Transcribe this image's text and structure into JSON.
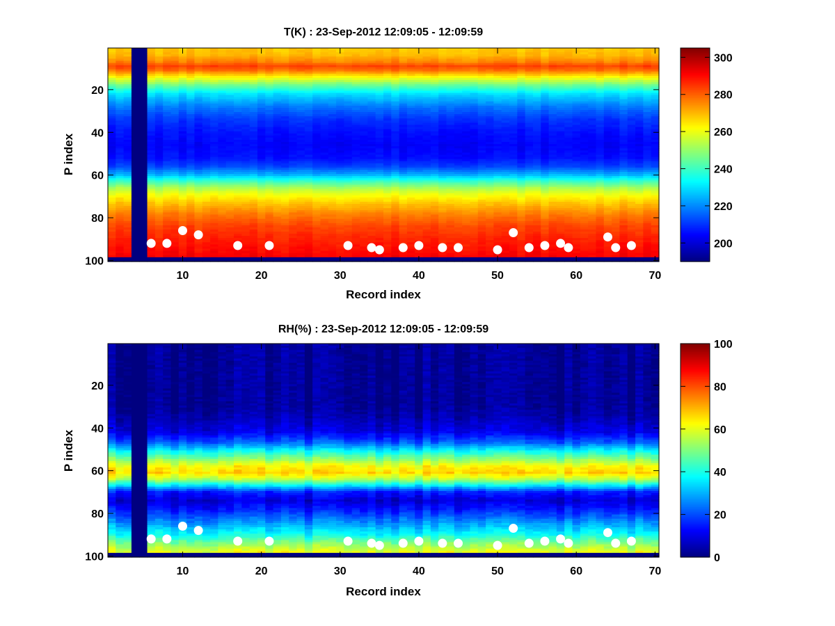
{
  "chart_data": [
    {
      "type": "heatmap",
      "title": "T(K) : 23-Sep-2012 12:09:05 - 12:09:59",
      "xlabel": "Record index",
      "ylabel": "P index",
      "xlim": [
        1,
        70
      ],
      "ylim": [
        1,
        100
      ],
      "y_reversed": true,
      "xticks": [
        10,
        20,
        30,
        40,
        50,
        60,
        70
      ],
      "yticks": [
        20,
        40,
        60,
        80,
        100
      ],
      "colormap": "jet",
      "clim": [
        190,
        305
      ],
      "colorbar_ticks": [
        200,
        220,
        240,
        260,
        280,
        300
      ],
      "profile": [
        {
          "p": 1,
          "value": 268
        },
        {
          "p": 4,
          "value": 270
        },
        {
          "p": 7,
          "value": 276
        },
        {
          "p": 9,
          "value": 283
        },
        {
          "p": 11,
          "value": 278
        },
        {
          "p": 14,
          "value": 263
        },
        {
          "p": 18,
          "value": 245
        },
        {
          "p": 22,
          "value": 230
        },
        {
          "p": 28,
          "value": 218
        },
        {
          "p": 34,
          "value": 210
        },
        {
          "p": 40,
          "value": 206
        },
        {
          "p": 46,
          "value": 204
        },
        {
          "p": 52,
          "value": 206
        },
        {
          "p": 56,
          "value": 212
        },
        {
          "p": 60,
          "value": 225
        },
        {
          "p": 63,
          "value": 240
        },
        {
          "p": 66,
          "value": 252
        },
        {
          "p": 69,
          "value": 260
        },
        {
          "p": 73,
          "value": 268
        },
        {
          "p": 78,
          "value": 276
        },
        {
          "p": 84,
          "value": 283
        },
        {
          "p": 90,
          "value": 287
        },
        {
          "p": 96,
          "value": 290
        },
        {
          "p": 98,
          "value": 291
        }
      ],
      "missing_columns": [
        4,
        5
      ],
      "missing_rows": [
        99,
        100
      ],
      "markers": [
        {
          "x": 6,
          "y": 92
        },
        {
          "x": 8,
          "y": 92
        },
        {
          "x": 10,
          "y": 86
        },
        {
          "x": 12,
          "y": 88
        },
        {
          "x": 17,
          "y": 93
        },
        {
          "x": 21,
          "y": 93
        },
        {
          "x": 31,
          "y": 93
        },
        {
          "x": 34,
          "y": 94
        },
        {
          "x": 35,
          "y": 95
        },
        {
          "x": 38,
          "y": 94
        },
        {
          "x": 40,
          "y": 93
        },
        {
          "x": 43,
          "y": 94
        },
        {
          "x": 45,
          "y": 94
        },
        {
          "x": 50,
          "y": 95
        },
        {
          "x": 52,
          "y": 87
        },
        {
          "x": 54,
          "y": 94
        },
        {
          "x": 56,
          "y": 93
        },
        {
          "x": 58,
          "y": 92
        },
        {
          "x": 59,
          "y": 94
        },
        {
          "x": 64,
          "y": 89
        },
        {
          "x": 65,
          "y": 94
        },
        {
          "x": 67,
          "y": 93
        }
      ]
    },
    {
      "type": "heatmap",
      "title": "RH(%) : 23-Sep-2012 12:09:05 - 12:09:59",
      "xlabel": "Record index",
      "ylabel": "P index",
      "xlim": [
        1,
        70
      ],
      "ylim": [
        1,
        100
      ],
      "y_reversed": true,
      "xticks": [
        10,
        20,
        30,
        40,
        50,
        60,
        70
      ],
      "yticks": [
        20,
        40,
        60,
        80,
        100
      ],
      "colormap": "jet",
      "clim": [
        0,
        100
      ],
      "colorbar_ticks": [
        0,
        20,
        40,
        60,
        80,
        100
      ],
      "profile": [
        {
          "p": 1,
          "value": 2
        },
        {
          "p": 30,
          "value": 2
        },
        {
          "p": 36,
          "value": 5
        },
        {
          "p": 42,
          "value": 10
        },
        {
          "p": 47,
          "value": 22
        },
        {
          "p": 51,
          "value": 38
        },
        {
          "p": 55,
          "value": 52
        },
        {
          "p": 58,
          "value": 62
        },
        {
          "p": 61,
          "value": 66
        },
        {
          "p": 64,
          "value": 55
        },
        {
          "p": 67,
          "value": 35
        },
        {
          "p": 70,
          "value": 15
        },
        {
          "p": 74,
          "value": 8
        },
        {
          "p": 78,
          "value": 14
        },
        {
          "p": 82,
          "value": 22
        },
        {
          "p": 86,
          "value": 30
        },
        {
          "p": 90,
          "value": 38
        },
        {
          "p": 94,
          "value": 50
        },
        {
          "p": 98,
          "value": 60
        }
      ],
      "missing_columns": [
        4,
        5
      ],
      "missing_rows": [
        99,
        100
      ],
      "markers": [
        {
          "x": 6,
          "y": 92
        },
        {
          "x": 8,
          "y": 92
        },
        {
          "x": 10,
          "y": 86
        },
        {
          "x": 12,
          "y": 88
        },
        {
          "x": 17,
          "y": 93
        },
        {
          "x": 21,
          "y": 93
        },
        {
          "x": 31,
          "y": 93
        },
        {
          "x": 34,
          "y": 94
        },
        {
          "x": 35,
          "y": 95
        },
        {
          "x": 38,
          "y": 94
        },
        {
          "x": 40,
          "y": 93
        },
        {
          "x": 43,
          "y": 94
        },
        {
          "x": 45,
          "y": 94
        },
        {
          "x": 50,
          "y": 95
        },
        {
          "x": 52,
          "y": 87
        },
        {
          "x": 54,
          "y": 94
        },
        {
          "x": 56,
          "y": 93
        },
        {
          "x": 58,
          "y": 92
        },
        {
          "x": 59,
          "y": 94
        },
        {
          "x": 64,
          "y": 89
        },
        {
          "x": 65,
          "y": 94
        },
        {
          "x": 67,
          "y": 93
        }
      ]
    }
  ]
}
